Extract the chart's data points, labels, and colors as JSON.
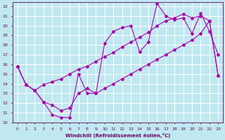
{
  "xlabel": "Windchill (Refroidissement éolien,°C)",
  "xlim": [
    -0.5,
    23.5
  ],
  "ylim": [
    10,
    22.4
  ],
  "xticks": [
    0,
    1,
    2,
    3,
    4,
    5,
    6,
    7,
    8,
    9,
    10,
    11,
    12,
    13,
    14,
    15,
    16,
    17,
    18,
    19,
    20,
    21,
    22,
    23
  ],
  "yticks": [
    10,
    11,
    12,
    13,
    14,
    15,
    16,
    17,
    18,
    19,
    20,
    21,
    22
  ],
  "line_color": "#aa00aa",
  "bg_color": "#c0e8f0",
  "grid_color": "#ffffff",
  "line1_x": [
    0,
    1,
    2,
    3,
    4,
    5,
    6,
    7,
    8,
    9,
    10,
    11,
    12,
    13,
    14,
    15,
    16,
    17,
    18,
    19,
    20,
    21,
    22,
    23
  ],
  "line1_y": [
    15.8,
    13.9,
    13.3,
    12.1,
    10.8,
    10.5,
    10.5,
    15.0,
    13.0,
    13.0,
    18.2,
    19.4,
    19.8,
    20.0,
    17.3,
    18.3,
    22.3,
    21.0,
    20.6,
    20.8,
    19.2,
    21.3,
    19.4,
    17.0
  ],
  "line2_x": [
    0,
    1,
    2,
    3,
    4,
    5,
    6,
    7,
    8,
    9,
    10,
    11,
    12,
    13,
    14,
    15,
    16,
    17,
    18,
    19,
    20,
    21,
    22,
    23
  ],
  "line2_y": [
    15.8,
    13.9,
    13.3,
    13.9,
    14.2,
    14.5,
    15.0,
    15.5,
    15.8,
    16.3,
    16.8,
    17.2,
    17.8,
    18.3,
    18.8,
    19.3,
    20.0,
    20.5,
    20.8,
    21.2,
    20.8,
    21.0,
    20.5,
    14.8
  ],
  "line3_x": [
    0,
    1,
    2,
    3,
    4,
    5,
    6,
    7,
    8,
    9,
    10,
    11,
    12,
    13,
    14,
    15,
    16,
    17,
    18,
    19,
    20,
    21,
    22,
    23
  ],
  "line3_y": [
    15.8,
    13.9,
    13.3,
    12.1,
    11.8,
    11.2,
    11.5,
    13.0,
    13.5,
    13.0,
    13.5,
    14.0,
    14.5,
    15.0,
    15.5,
    16.0,
    16.5,
    17.0,
    17.5,
    18.0,
    18.5,
    19.2,
    20.5,
    14.8
  ]
}
